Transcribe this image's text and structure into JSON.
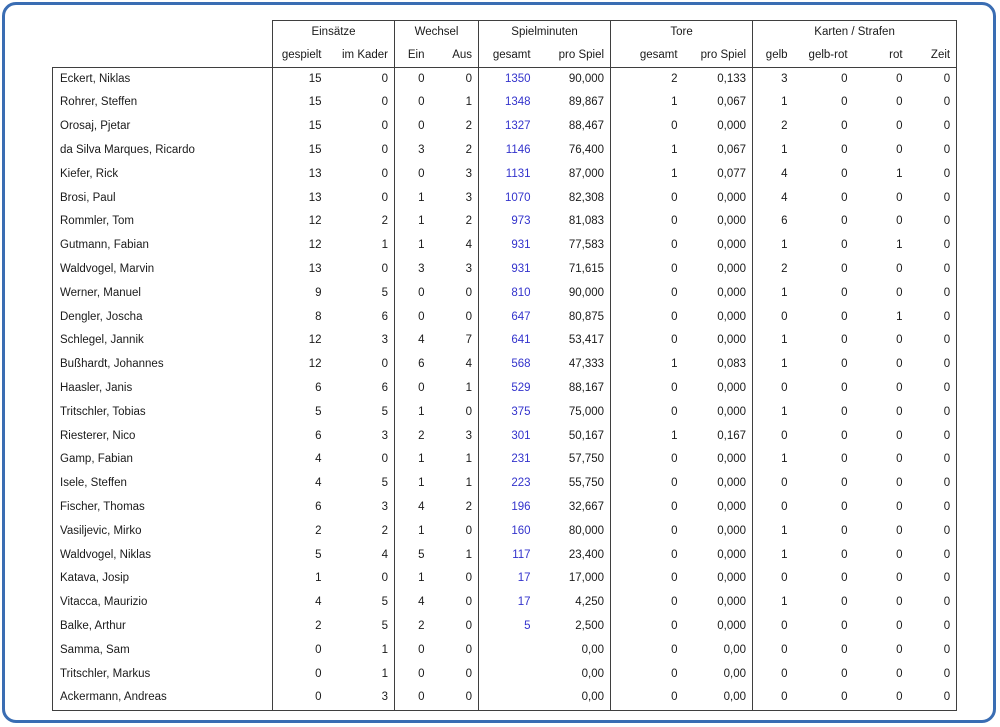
{
  "colors": {
    "frame_border": "#3a6db3",
    "table_lines": "#3f3f3f",
    "text": "#1a1a1a",
    "minutes_total_text": "#3333cc"
  },
  "table": {
    "groups": [
      {
        "label": "Einsätze",
        "cols": 2
      },
      {
        "label": "Wechsel",
        "cols": 2
      },
      {
        "label": "Spielminuten",
        "cols": 2
      },
      {
        "label": "Tore",
        "cols": 2
      },
      {
        "label": "Karten / Strafen",
        "cols": 4
      }
    ],
    "subheaders": [
      "gespielt",
      "im Kader",
      "Ein",
      "Aus",
      "gesamt",
      "pro Spiel",
      "gesamt",
      "pro Spiel",
      "gelb",
      "gelb-rot",
      "rot",
      "Zeit"
    ],
    "column_keys": [
      "einsaetze-gespielt",
      "einsaetze-im-kader",
      "wechsel-ein",
      "wechsel-aus",
      "minuten-gesamt",
      "minuten-pro-spiel",
      "tore-gesamt",
      "tore-pro-spiel",
      "karten-gelb",
      "karten-gelb-rot",
      "karten-rot",
      "strafen-zeit"
    ],
    "rows": [
      {
        "name": "Eckert, Niklas",
        "values": [
          "15",
          "0",
          "0",
          "0",
          "1350",
          "90,000",
          "2",
          "0,133",
          "3",
          "0",
          "0",
          "0"
        ]
      },
      {
        "name": "Rohrer, Steffen",
        "values": [
          "15",
          "0",
          "0",
          "1",
          "1348",
          "89,867",
          "1",
          "0,067",
          "1",
          "0",
          "0",
          "0"
        ]
      },
      {
        "name": "Orosaj, Pjetar",
        "values": [
          "15",
          "0",
          "0",
          "2",
          "1327",
          "88,467",
          "0",
          "0,000",
          "2",
          "0",
          "0",
          "0"
        ]
      },
      {
        "name": "da Silva Marques, Ricardo",
        "values": [
          "15",
          "0",
          "3",
          "2",
          "1146",
          "76,400",
          "1",
          "0,067",
          "1",
          "0",
          "0",
          "0"
        ]
      },
      {
        "name": "Kiefer, Rick",
        "values": [
          "13",
          "0",
          "0",
          "3",
          "1131",
          "87,000",
          "1",
          "0,077",
          "4",
          "0",
          "1",
          "0"
        ]
      },
      {
        "name": "Brosi, Paul",
        "values": [
          "13",
          "0",
          "1",
          "3",
          "1070",
          "82,308",
          "0",
          "0,000",
          "4",
          "0",
          "0",
          "0"
        ]
      },
      {
        "name": "Rommler, Tom",
        "values": [
          "12",
          "2",
          "1",
          "2",
          "973",
          "81,083",
          "0",
          "0,000",
          "6",
          "0",
          "0",
          "0"
        ]
      },
      {
        "name": "Gutmann, Fabian",
        "values": [
          "12",
          "1",
          "1",
          "4",
          "931",
          "77,583",
          "0",
          "0,000",
          "1",
          "0",
          "1",
          "0"
        ]
      },
      {
        "name": "Waldvogel, Marvin",
        "values": [
          "13",
          "0",
          "3",
          "3",
          "931",
          "71,615",
          "0",
          "0,000",
          "2",
          "0",
          "0",
          "0"
        ]
      },
      {
        "name": "Werner, Manuel",
        "values": [
          "9",
          "5",
          "0",
          "0",
          "810",
          "90,000",
          "0",
          "0,000",
          "1",
          "0",
          "0",
          "0"
        ]
      },
      {
        "name": "Dengler, Joscha",
        "values": [
          "8",
          "6",
          "0",
          "0",
          "647",
          "80,875",
          "0",
          "0,000",
          "0",
          "0",
          "1",
          "0"
        ]
      },
      {
        "name": "Schlegel, Jannik",
        "values": [
          "12",
          "3",
          "4",
          "7",
          "641",
          "53,417",
          "0",
          "0,000",
          "1",
          "0",
          "0",
          "0"
        ]
      },
      {
        "name": "Bußhardt, Johannes",
        "values": [
          "12",
          "0",
          "6",
          "4",
          "568",
          "47,333",
          "1",
          "0,083",
          "1",
          "0",
          "0",
          "0"
        ]
      },
      {
        "name": "Haasler, Janis",
        "values": [
          "6",
          "6",
          "0",
          "1",
          "529",
          "88,167",
          "0",
          "0,000",
          "0",
          "0",
          "0",
          "0"
        ]
      },
      {
        "name": "Tritschler, Tobias",
        "values": [
          "5",
          "5",
          "1",
          "0",
          "375",
          "75,000",
          "0",
          "0,000",
          "1",
          "0",
          "0",
          "0"
        ]
      },
      {
        "name": "Riesterer, Nico",
        "values": [
          "6",
          "3",
          "2",
          "3",
          "301",
          "50,167",
          "1",
          "0,167",
          "0",
          "0",
          "0",
          "0"
        ]
      },
      {
        "name": "Gamp, Fabian",
        "values": [
          "4",
          "0",
          "1",
          "1",
          "231",
          "57,750",
          "0",
          "0,000",
          "1",
          "0",
          "0",
          "0"
        ]
      },
      {
        "name": "Isele, Steffen",
        "values": [
          "4",
          "5",
          "1",
          "1",
          "223",
          "55,750",
          "0",
          "0,000",
          "0",
          "0",
          "0",
          "0"
        ]
      },
      {
        "name": "Fischer, Thomas",
        "values": [
          "6",
          "3",
          "4",
          "2",
          "196",
          "32,667",
          "0",
          "0,000",
          "0",
          "0",
          "0",
          "0"
        ]
      },
      {
        "name": "Vasiljevic, Mirko",
        "values": [
          "2",
          "2",
          "1",
          "0",
          "160",
          "80,000",
          "0",
          "0,000",
          "1",
          "0",
          "0",
          "0"
        ]
      },
      {
        "name": "Waldvogel, Niklas",
        "values": [
          "5",
          "4",
          "5",
          "1",
          "117",
          "23,400",
          "0",
          "0,000",
          "1",
          "0",
          "0",
          "0"
        ]
      },
      {
        "name": "Katava, Josip",
        "values": [
          "1",
          "0",
          "1",
          "0",
          "17",
          "17,000",
          "0",
          "0,000",
          "0",
          "0",
          "0",
          "0"
        ]
      },
      {
        "name": "Vitacca, Maurizio",
        "values": [
          "4",
          "5",
          "4",
          "0",
          "17",
          "4,250",
          "0",
          "0,000",
          "1",
          "0",
          "0",
          "0"
        ]
      },
      {
        "name": "Balke, Arthur",
        "values": [
          "2",
          "5",
          "2",
          "0",
          "5",
          "2,500",
          "0",
          "0,000",
          "0",
          "0",
          "0",
          "0"
        ]
      },
      {
        "name": "Samma, Sam",
        "values": [
          "0",
          "1",
          "0",
          "0",
          "",
          "0,00",
          "0",
          "0,00",
          "0",
          "0",
          "0",
          "0"
        ]
      },
      {
        "name": "Tritschler, Markus",
        "values": [
          "0",
          "1",
          "0",
          "0",
          "",
          "0,00",
          "0",
          "0,00",
          "0",
          "0",
          "0",
          "0"
        ]
      },
      {
        "name": "Ackermann, Andreas",
        "values": [
          "0",
          "3",
          "0",
          "0",
          "",
          "0,00",
          "0",
          "0,00",
          "0",
          "0",
          "0",
          "0"
        ]
      }
    ]
  }
}
